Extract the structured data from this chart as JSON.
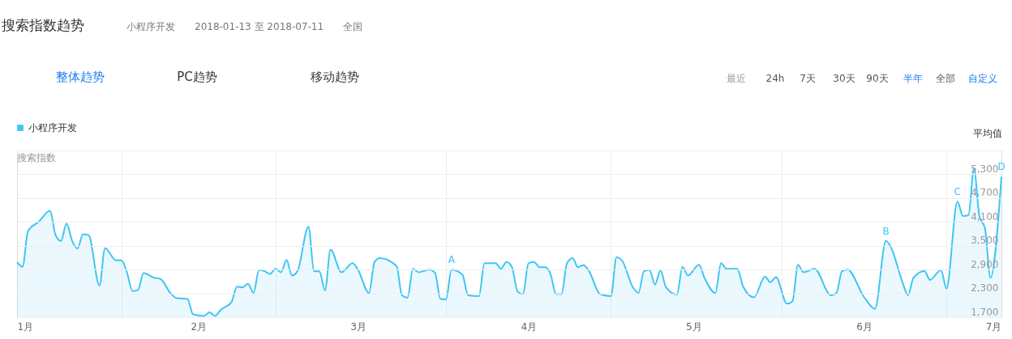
{
  "chart_data": {
    "type": "area",
    "title": "搜索指数趋势",
    "subtitle": "小程序开发　　2018-01-13 至 2018-07-11　　全国",
    "ylabel": "搜索指数",
    "series": [
      {
        "name": "小程序开发",
        "color": "#3ec5f5",
        "x": [
          "2018-01-13",
          "2018-01-14",
          "2018-01-15",
          "2018-01-17",
          "2018-01-19",
          "2018-01-20",
          "2018-01-21",
          "2018-01-22",
          "2018-01-23",
          "2018-01-24",
          "2018-01-25",
          "2018-01-26",
          "2018-01-28",
          "2018-01-29",
          "2018-01-31",
          "2018-02-01",
          "2018-02-02",
          "2018-02-03",
          "2018-02-04",
          "2018-02-05",
          "2018-02-07",
          "2018-02-08",
          "2018-02-10",
          "2018-02-11",
          "2018-02-13",
          "2018-02-14",
          "2018-02-16",
          "2018-02-17",
          "2018-02-18",
          "2018-02-19",
          "2018-02-21",
          "2018-02-22",
          "2018-02-23",
          "2018-02-24",
          "2018-02-25",
          "2018-02-26",
          "2018-02-27",
          "2018-02-28",
          "2018-03-01",
          "2018-03-02",
          "2018-03-03",
          "2018-03-04",
          "2018-03-05",
          "2018-03-07",
          "2018-03-08",
          "2018-03-09",
          "2018-03-10",
          "2018-03-11",
          "2018-03-13",
          "2018-03-15",
          "2018-03-16",
          "2018-03-18",
          "2018-03-19",
          "2018-03-20",
          "2018-03-23",
          "2018-03-24",
          "2018-03-25",
          "2018-03-26",
          "2018-03-27",
          "2018-03-29",
          "2018-03-30",
          "2018-03-31",
          "2018-04-01",
          "2018-04-02",
          "2018-04-04",
          "2018-04-05",
          "2018-04-07",
          "2018-04-08",
          "2018-04-10",
          "2018-04-11",
          "2018-04-12",
          "2018-04-13",
          "2018-04-14",
          "2018-04-15",
          "2018-04-16",
          "2018-04-17",
          "2018-04-18",
          "2018-04-19",
          "2018-04-20",
          "2018-04-21",
          "2018-04-22",
          "2018-04-23",
          "2018-04-24",
          "2018-04-25",
          "2018-04-26",
          "2018-04-27",
          "2018-04-29",
          "2018-05-01",
          "2018-05-02",
          "2018-05-03",
          "2018-05-05",
          "2018-05-06",
          "2018-05-07",
          "2018-05-08",
          "2018-05-09",
          "2018-05-10",
          "2018-05-11",
          "2018-05-13",
          "2018-05-14",
          "2018-05-15",
          "2018-05-17",
          "2018-05-18",
          "2018-05-20",
          "2018-05-21",
          "2018-05-22",
          "2018-05-24",
          "2018-05-25",
          "2018-05-27",
          "2018-05-29",
          "2018-05-30",
          "2018-05-31",
          "2018-06-02",
          "2018-06-03",
          "2018-06-04",
          "2018-06-05",
          "2018-06-07",
          "2018-06-10",
          "2018-06-11",
          "2018-06-12",
          "2018-06-13",
          "2018-06-16",
          "2018-06-18",
          "2018-06-20",
          "2018-06-21",
          "2018-06-23",
          "2018-06-24",
          "2018-06-25",
          "2018-06-27",
          "2018-06-28",
          "2018-06-30",
          "2018-07-01",
          "2018-07-03",
          "2018-07-04",
          "2018-07-05",
          "2018-07-06",
          "2018-07-07",
          "2018-07-08",
          "2018-07-09",
          "2018-07-11"
        ],
        "values": [
          3090,
          2970,
          3870,
          4110,
          4380,
          3770,
          3620,
          4060,
          3630,
          3430,
          3790,
          3770,
          2500,
          3440,
          3130,
          3130,
          2820,
          2360,
          2380,
          2810,
          2690,
          2670,
          2290,
          2180,
          2160,
          1770,
          1730,
          1820,
          1730,
          1880,
          2080,
          2470,
          2450,
          2540,
          2310,
          2890,
          2860,
          2790,
          2920,
          2830,
          3140,
          2750,
          2860,
          3980,
          2860,
          2850,
          2370,
          3400,
          2830,
          3060,
          2890,
          2310,
          3090,
          3190,
          2990,
          2250,
          2190,
          2920,
          2830,
          2900,
          2820,
          2160,
          2150,
          2900,
          2770,
          2250,
          2230,
          3060,
          3060,
          2920,
          3090,
          2960,
          2350,
          2280,
          3060,
          3090,
          2960,
          2960,
          2790,
          2280,
          2280,
          3060,
          3190,
          2960,
          3010,
          2860,
          2280,
          2230,
          3210,
          3130,
          2450,
          2310,
          2860,
          2890,
          2520,
          2880,
          2450,
          2270,
          2970,
          2750,
          3020,
          2690,
          2310,
          3060,
          2920,
          2920,
          2480,
          2200,
          2720,
          2580,
          2710,
          2040,
          2100,
          3020,
          2830,
          2920,
          2250,
          2310,
          2860,
          2900,
          2210,
          1910,
          3620,
          3430,
          2580,
          2250,
          2690,
          2860,
          2640,
          2890,
          2420,
          4610,
          4250,
          4270,
          5440,
          4240,
          3940,
          2690,
          5240
        ]
      }
    ],
    "xlim": [
      "2018-01-13",
      "2018-07-11"
    ],
    "xticks": [
      {
        "value": "2018-01-13",
        "label": "1月"
      },
      {
        "value": "2018-02-01",
        "label": null
      },
      {
        "value": "2018-02-15",
        "label": "2月"
      },
      {
        "value": "2018-03-01",
        "label": null
      },
      {
        "value": "2018-03-16",
        "label": "3月"
      },
      {
        "value": "2018-04-01",
        "label": null
      },
      {
        "value": "2018-04-16",
        "label": "4月"
      },
      {
        "value": "2018-05-01",
        "label": null
      },
      {
        "value": "2018-05-16",
        "label": "5月"
      },
      {
        "value": "2018-06-01",
        "label": null
      },
      {
        "value": "2018-06-16",
        "label": "6月"
      },
      {
        "value": "2018-07-01",
        "label": null
      },
      {
        "value": "2018-07-11",
        "label": "7月"
      }
    ],
    "ylim": [
      1700,
      5900
    ],
    "yticks": [
      {
        "value": 1700,
        "label": "1,700"
      },
      {
        "value": 2300,
        "label": "2,300"
      },
      {
        "value": 2900,
        "label": "2,900"
      },
      {
        "value": 3500,
        "label": "3,500"
      },
      {
        "value": 4100,
        "label": "4,100"
      },
      {
        "value": 4700,
        "label": "4,700"
      },
      {
        "value": 5300,
        "label": "5,300"
      },
      {
        "value": 5900,
        "label": null
      }
    ],
    "grid": true,
    "legend": "top left",
    "annotations": [
      "整体趋势",
      "PC趋势",
      "移动趋势",
      "最近",
      "24h",
      "7天",
      "30天",
      "90天",
      "半年",
      "全部",
      "自定义",
      "平均值",
      {
        "text": "A",
        "x": "2018-04-02",
        "y": 2900
      },
      {
        "text": "B",
        "x": "2018-06-20",
        "y": 3620
      },
      {
        "text": "C",
        "x": "2018-07-03",
        "y": 4610
      },
      {
        "text": "D",
        "x": "2018-07-11",
        "y": 5240
      }
    ]
  }
}
